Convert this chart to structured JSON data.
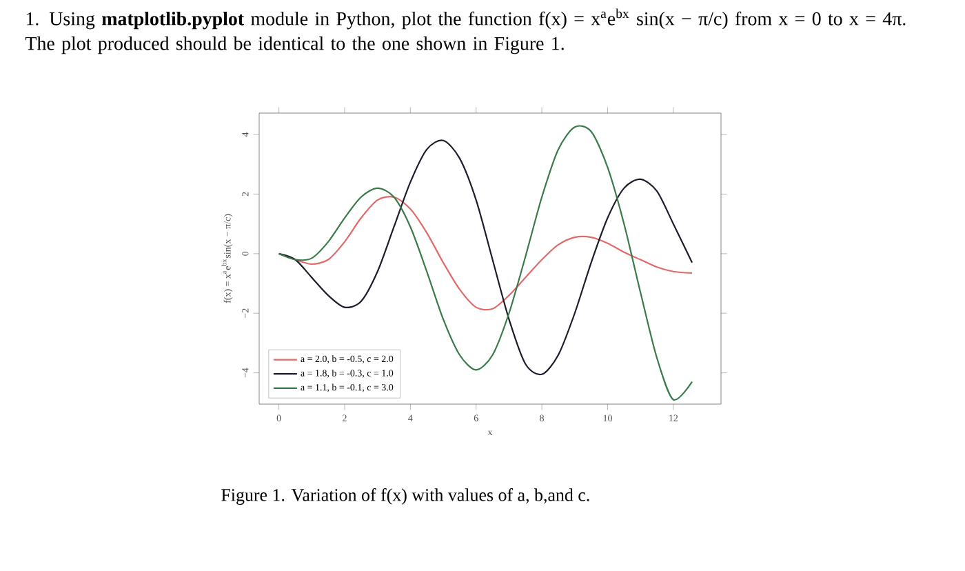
{
  "chart_data": {
    "type": "line",
    "title": "1. Using **matplotlib.pyplot** module in Python, plot the function f(x) = x$^{a}$e$^{bx}$ sin(x − π/c) from x = 0 to x = 4π. The plot produced should be identical to the one shown in Figure 1.",
    "xlabel": "x",
    "ylabel": "f(x) = x$^{a}$e$^{bx}$sin(x − π/c)",
    "annotations": [
      "Figure 1. Variation of f(x) with values of a, b,and c."
    ],
    "x": [
      0,
      0.5,
      1,
      1.5,
      2,
      2.5,
      3,
      3.5,
      4,
      4.5,
      5,
      5.5,
      6,
      6.5,
      7,
      7.5,
      8,
      8.5,
      9,
      9.5,
      10,
      10.5,
      11,
      11.5,
      12,
      12.57
    ],
    "series": [
      {
        "name": "a = 2.0, b = -0.5, c = 2.0",
        "color": "#e06a6a",
        "values": [
          0,
          -0.2,
          -0.35,
          -0.2,
          0.4,
          1.2,
          1.8,
          1.9,
          1.5,
          0.7,
          -0.3,
          -1.2,
          -1.8,
          -1.85,
          -1.4,
          -0.8,
          -0.2,
          0.3,
          0.55,
          0.55,
          0.35,
          0.05,
          -0.2,
          -0.45,
          -0.6,
          -0.65
        ]
      },
      {
        "name": "a = 1.8, b = -0.3, c = 1.0",
        "color": "#1c1c2a",
        "values": [
          0,
          -0.2,
          -0.8,
          -1.4,
          -1.8,
          -1.6,
          -0.6,
          0.9,
          2.4,
          3.5,
          3.8,
          3.2,
          1.8,
          -0.2,
          -2.2,
          -3.7,
          -4.05,
          -3.4,
          -2.0,
          -0.3,
          1.2,
          2.2,
          2.5,
          2.1,
          1.0,
          -0.3
        ]
      },
      {
        "name": "a = 1.1, b = -0.1, c = 3.0",
        "color": "#3a7a4a",
        "values": [
          0,
          -0.2,
          -0.15,
          0.4,
          1.2,
          1.9,
          2.2,
          1.9,
          0.9,
          -0.6,
          -2.2,
          -3.4,
          -3.9,
          -3.4,
          -2.0,
          -0.1,
          1.9,
          3.5,
          4.25,
          4.1,
          2.9,
          1.0,
          -1.3,
          -3.5,
          -4.9,
          -4.3
        ]
      }
    ],
    "xlim": [
      -0.6,
      13.45
    ],
    "ylim": [
      -5.05,
      4.72
    ],
    "xticks": [
      0,
      2,
      4,
      6,
      8,
      10,
      12
    ],
    "yticks": [
      {
        "value": -4,
        "label": "−4"
      },
      {
        "value": -2,
        "label": "−2"
      },
      0,
      2,
      4
    ],
    "legend": "bottom left"
  }
}
